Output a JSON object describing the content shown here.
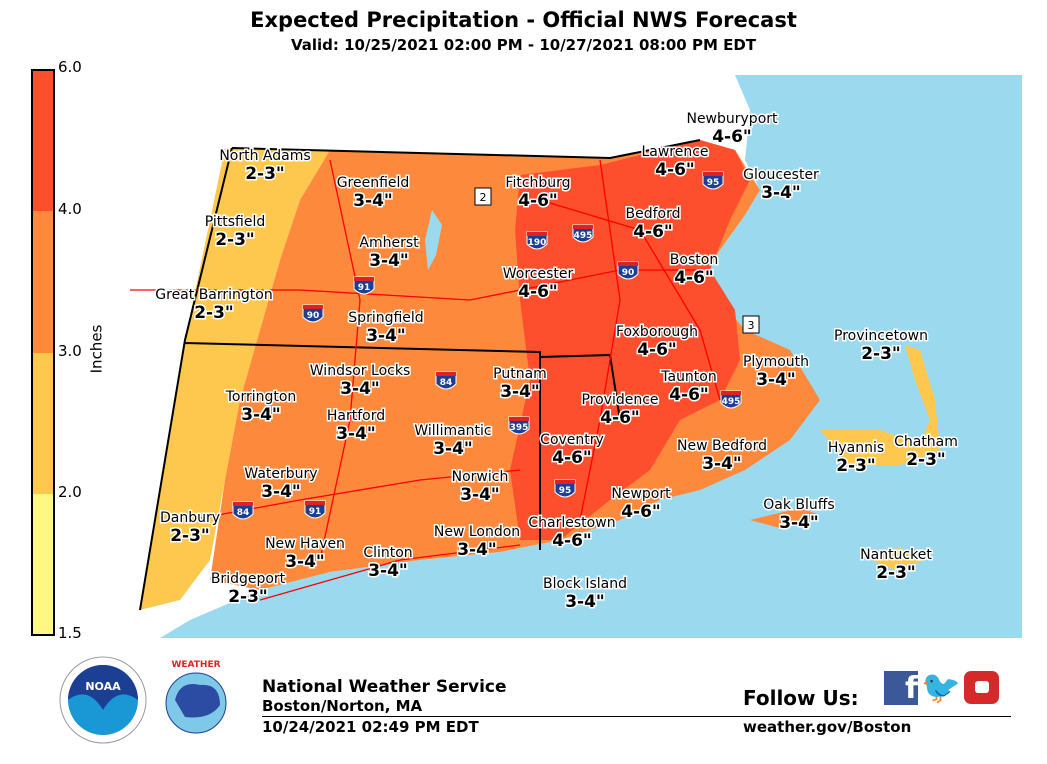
{
  "header": {
    "title": "Expected Precipitation - Official NWS Forecast",
    "valid": "Valid: 10/25/2021 02:00 PM - 10/27/2021 08:00 PM EDT"
  },
  "legend": {
    "label": "Inches",
    "ticks": [
      "6.0",
      "4.0",
      "3.0",
      "2.0",
      "1.5"
    ],
    "bins": [
      {
        "range": "4.0-6.0",
        "color": "#fd4e2d"
      },
      {
        "range": "3.0-4.0",
        "color": "#fd8a3c"
      },
      {
        "range": "2.0-3.0",
        "color": "#fec84f"
      },
      {
        "range": "1.5-2.0",
        "color": "#fff783"
      }
    ]
  },
  "map": {
    "ocean_color": "#9bd9ef",
    "roads_color": "#ff0000",
    "shields": [
      "91",
      "90",
      "190",
      "495",
      "90",
      "95",
      "84",
      "395",
      "84",
      "91",
      "95",
      "495"
    ],
    "route_markers": [
      "2",
      "3"
    ],
    "locations": [
      {
        "name": "North Adams",
        "amount": "2-3\""
      },
      {
        "name": "Greenfield",
        "amount": "3-4\""
      },
      {
        "name": "Fitchburg",
        "amount": "4-6\""
      },
      {
        "name": "Newburyport",
        "amount": "4-6\""
      },
      {
        "name": "Lawrence",
        "amount": "4-6\""
      },
      {
        "name": "Gloucester",
        "amount": "3-4\""
      },
      {
        "name": "Pittsfield",
        "amount": "2-3\""
      },
      {
        "name": "Bedford",
        "amount": "4-6\""
      },
      {
        "name": "Amherst",
        "amount": "3-4\""
      },
      {
        "name": "Worcester",
        "amount": "4-6\""
      },
      {
        "name": "Boston",
        "amount": "4-6\""
      },
      {
        "name": "Great Barrington",
        "amount": "2-3\""
      },
      {
        "name": "Springfield",
        "amount": "3-4\""
      },
      {
        "name": "Foxborough",
        "amount": "4-6\""
      },
      {
        "name": "Provincetown",
        "amount": "2-3\""
      },
      {
        "name": "Windsor Locks",
        "amount": "3-4\""
      },
      {
        "name": "Putnam",
        "amount": "3-4\""
      },
      {
        "name": "Plymouth",
        "amount": "3-4\""
      },
      {
        "name": "Torrington",
        "amount": "3-4\""
      },
      {
        "name": "Taunton",
        "amount": "4-6\""
      },
      {
        "name": "Providence",
        "amount": "4-6\""
      },
      {
        "name": "Hartford",
        "amount": "3-4\""
      },
      {
        "name": "Willimantic",
        "amount": "3-4\""
      },
      {
        "name": "Coventry",
        "amount": "4-6\""
      },
      {
        "name": "New Bedford",
        "amount": "3-4\""
      },
      {
        "name": "Hyannis",
        "amount": "2-3\""
      },
      {
        "name": "Chatham",
        "amount": "2-3\""
      },
      {
        "name": "Waterbury",
        "amount": "3-4\""
      },
      {
        "name": "Norwich",
        "amount": "3-4\""
      },
      {
        "name": "Newport",
        "amount": "4-6\""
      },
      {
        "name": "Oak Bluffs",
        "amount": "3-4\""
      },
      {
        "name": "Danbury",
        "amount": "2-3\""
      },
      {
        "name": "Charlestown",
        "amount": "4-6\""
      },
      {
        "name": "New London",
        "amount": "3-4\""
      },
      {
        "name": "Clinton",
        "amount": "3-4\""
      },
      {
        "name": "New Haven",
        "amount": "3-4\""
      },
      {
        "name": "Nantucket",
        "amount": "2-3\""
      },
      {
        "name": "Bridgeport",
        "amount": "2-3\""
      },
      {
        "name": "Block Island",
        "amount": "3-4\""
      }
    ]
  },
  "footer": {
    "org": "National Weather Service",
    "office": "Boston/Norton, MA",
    "issued": "10/24/2021 02:49 PM EDT",
    "follow": "Follow Us:",
    "website": "weather.gov/Boston",
    "logos": [
      "NOAA",
      "NATIONAL WEATHER SERVICE"
    ],
    "social": [
      "facebook",
      "twitter",
      "youtube"
    ]
  }
}
